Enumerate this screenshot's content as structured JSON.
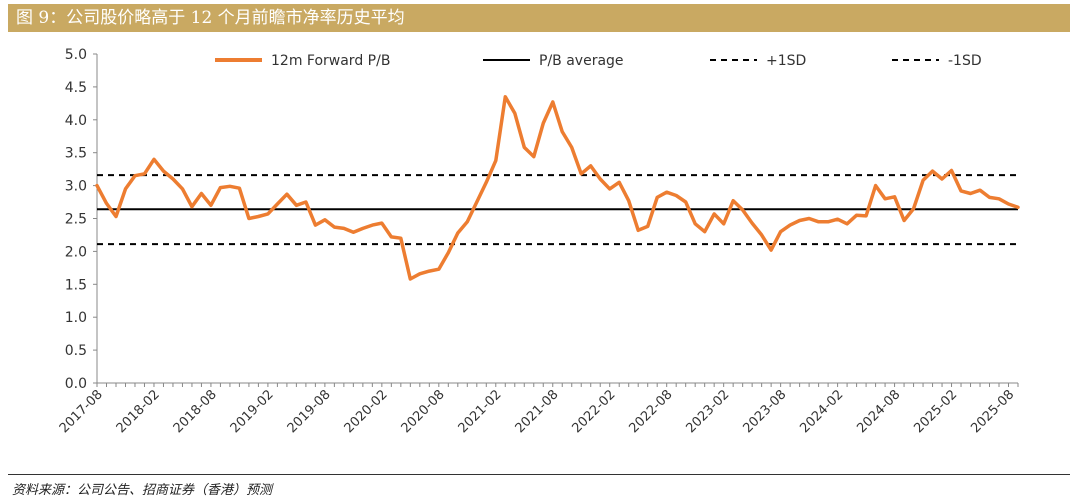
{
  "header": {
    "title": "图 9：公司股价略高于 12 个月前瞻市净率历史平均"
  },
  "footer": {
    "source": "资料来源：公司公告、招商证券（香港）预测"
  },
  "chart_data": {
    "type": "line",
    "title": "图 9：公司股价略高于 12 个月前瞻市净率历史平均",
    "xlabel": "",
    "ylabel": "",
    "ylim": [
      0,
      5
    ],
    "yticks": [
      "0.0",
      "0.5",
      "1.0",
      "1.5",
      "2.0",
      "2.5",
      "3.0",
      "3.5",
      "4.0",
      "4.5",
      "5.0"
    ],
    "xticks": [
      "2017-08",
      "2018-02",
      "2018-08",
      "2019-02",
      "2019-08",
      "2020-02",
      "2020-08",
      "2021-02",
      "2021-08",
      "2022-02",
      "2022-08",
      "2023-02",
      "2023-08",
      "2024-02",
      "2024-08",
      "2025-02",
      "2025-08"
    ],
    "legend": [
      "12m Forward P/B",
      "P/B average",
      "+1SD",
      "-1SD"
    ],
    "colors": {
      "pb": "#ed7d31",
      "average": "#000000",
      "sd": "#000000"
    },
    "series": [
      {
        "name": "12m Forward P/B",
        "values": [
          3.0,
          2.73,
          2.53,
          2.95,
          3.15,
          3.18,
          3.4,
          3.22,
          3.1,
          2.95,
          2.68,
          2.88,
          2.7,
          2.97,
          2.99,
          2.96,
          2.5,
          2.53,
          2.57,
          2.72,
          2.87,
          2.7,
          2.75,
          2.4,
          2.48,
          2.37,
          2.35,
          2.29,
          2.35,
          2.4,
          2.43,
          2.22,
          2.2,
          1.58,
          1.66,
          1.7,
          1.73,
          1.98,
          2.28,
          2.45,
          2.75,
          3.05,
          3.38,
          4.35,
          4.1,
          3.58,
          3.44,
          3.95,
          4.27,
          3.82,
          3.58,
          3.18,
          3.3,
          3.1,
          2.95,
          3.05,
          2.77,
          2.32,
          2.38,
          2.82,
          2.9,
          2.85,
          2.75,
          2.42,
          2.3,
          2.57,
          2.42,
          2.77,
          2.63,
          2.43,
          2.25,
          2.02,
          2.3,
          2.4,
          2.47,
          2.5,
          2.45,
          2.45,
          2.49,
          2.42,
          2.55,
          2.54,
          3.0,
          2.8,
          2.83,
          2.47,
          2.65,
          3.08,
          3.22,
          3.1,
          3.23,
          2.92,
          2.88,
          2.93,
          2.82,
          2.8,
          2.72,
          2.67
        ]
      },
      {
        "name": "P/B average",
        "value": 2.64
      },
      {
        "name": "+1SD",
        "value": 3.16
      },
      {
        "name": "-1SD",
        "value": 2.11
      }
    ]
  }
}
